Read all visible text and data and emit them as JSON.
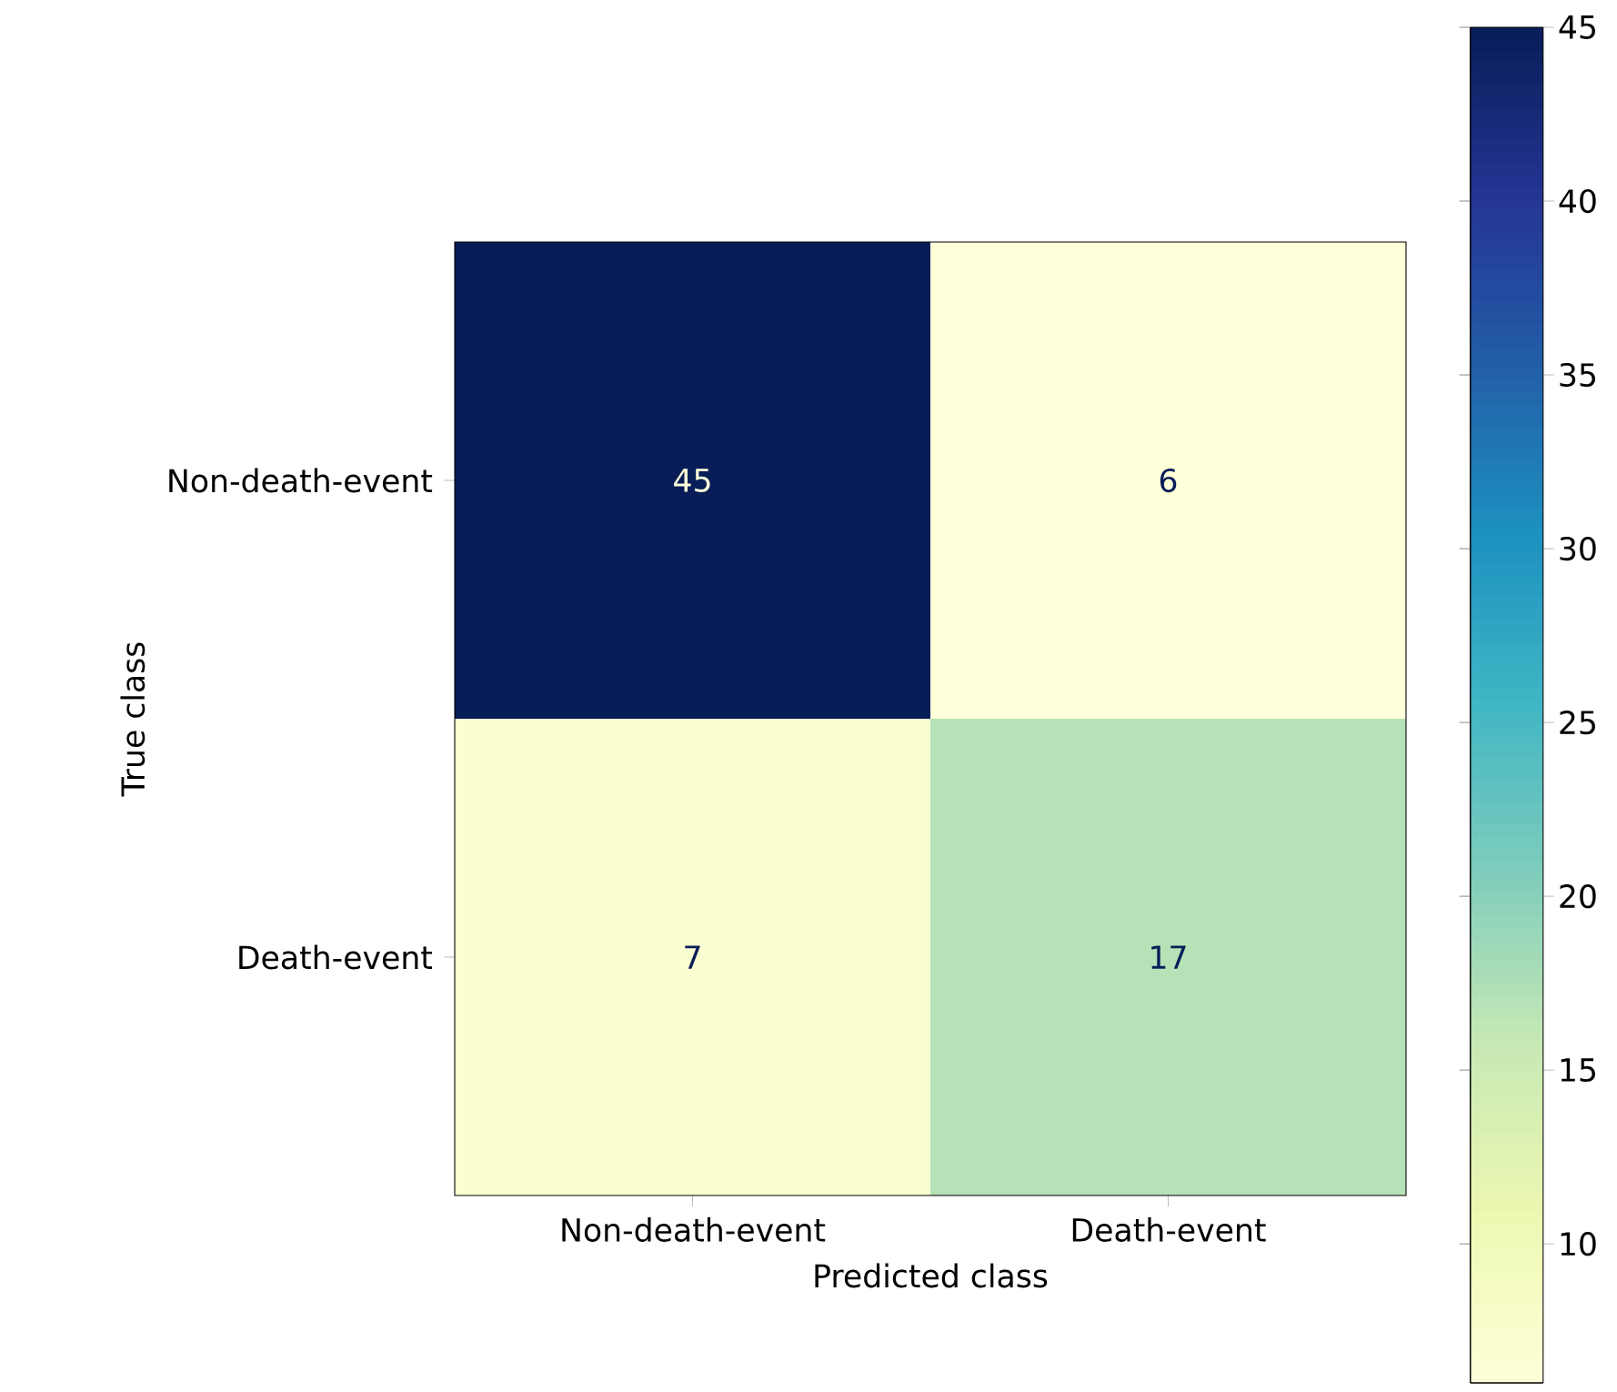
{
  "chart_data": {
    "type": "heatmap",
    "xlabel": "Predicted class",
    "ylabel": "True class",
    "categories": [
      "Non-death-event",
      "Death-event"
    ],
    "y_categories": [
      "Non-death-event",
      "Death-event"
    ],
    "cells": [
      [
        45,
        6
      ],
      [
        7,
        17
      ]
    ],
    "clim": [
      6,
      45
    ],
    "cticks": [
      10,
      15,
      20,
      25,
      30,
      35,
      40,
      45
    ],
    "data_labels": true
  }
}
